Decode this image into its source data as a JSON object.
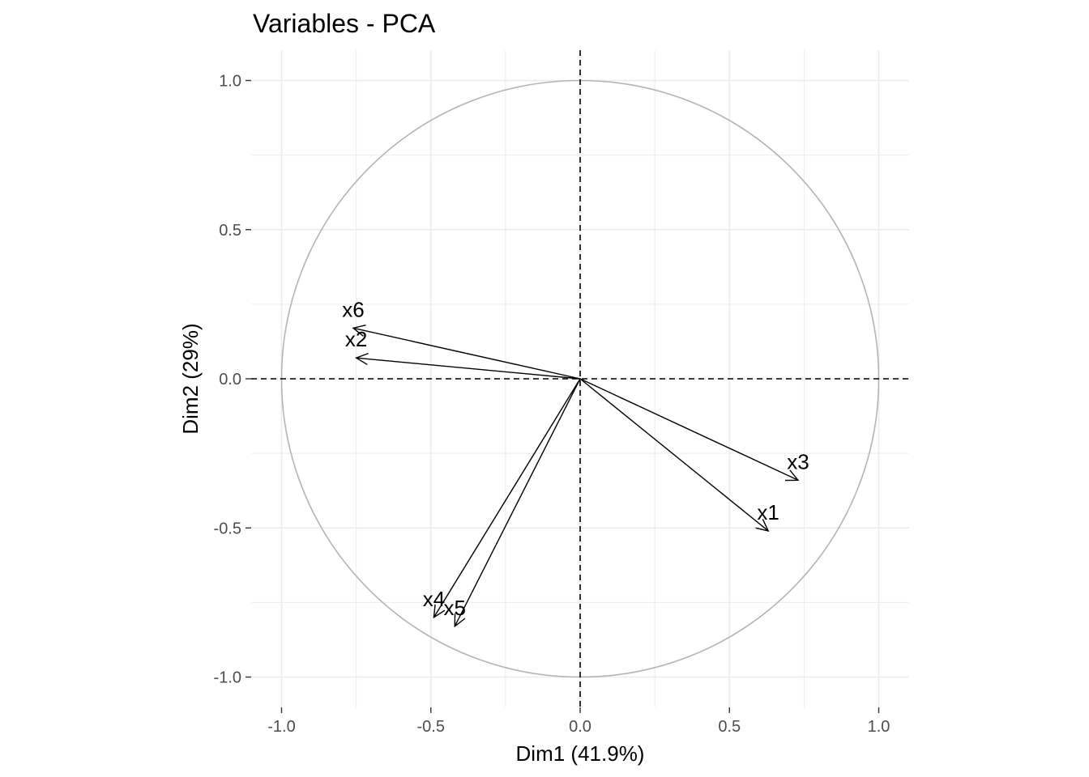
{
  "chart_data": {
    "type": "scatter",
    "subtype": "pca-variable-correlation-circle",
    "title": "Variables - PCA",
    "xlabel": "Dim1 (41.9%)",
    "ylabel": "Dim2 (29%)",
    "xlim": [
      -1.1,
      1.1
    ],
    "ylim": [
      -1.1,
      1.1
    ],
    "x_ticks": [
      -1.0,
      -0.5,
      0.0,
      0.5,
      1.0
    ],
    "x_tick_labels": [
      "-1.0",
      "-0.5",
      "0.0",
      "0.5",
      "1.0"
    ],
    "y_ticks": [
      -1.0,
      -0.5,
      0.0,
      0.5,
      1.0
    ],
    "y_tick_labels": [
      "-1.0",
      "-0.5",
      "0.0",
      "0.5",
      "1.0"
    ],
    "grid": true,
    "unit_circle": true,
    "reference_lines": {
      "x": 0,
      "y": 0,
      "style": "dashed"
    },
    "variables": [
      {
        "name": "x1",
        "x": 0.63,
        "y": -0.51
      },
      {
        "name": "x2",
        "x": -0.75,
        "y": 0.07
      },
      {
        "name": "x3",
        "x": 0.73,
        "y": -0.34
      },
      {
        "name": "x4",
        "x": -0.49,
        "y": -0.8
      },
      {
        "name": "x5",
        "x": -0.42,
        "y": -0.83
      },
      {
        "name": "x6",
        "x": -0.76,
        "y": 0.17
      }
    ],
    "colors": {
      "arrow": "#000000",
      "circle": "#b3b3b3",
      "grid": "#ebebeb",
      "tick_text": "#4d4d4d"
    }
  }
}
